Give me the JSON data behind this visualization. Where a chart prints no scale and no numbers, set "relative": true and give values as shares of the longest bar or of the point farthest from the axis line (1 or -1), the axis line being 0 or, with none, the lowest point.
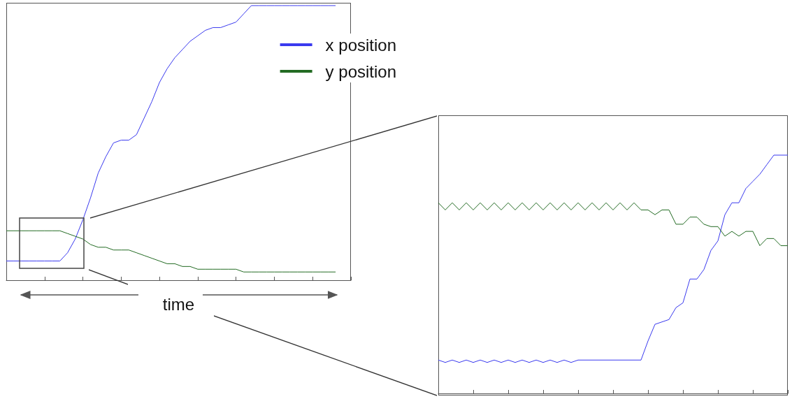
{
  "chart_data": [
    {
      "type": "line",
      "relative": true,
      "xlabel": "time",
      "legend": "top right",
      "marker": "none",
      "categories": [
        null,
        null,
        null,
        null,
        null,
        null,
        null,
        null,
        null,
        null,
        null,
        null,
        null,
        null,
        null,
        null,
        null,
        null,
        null,
        null,
        null,
        null,
        null,
        null,
        null,
        null,
        null,
        null,
        null,
        null,
        null,
        null,
        null,
        null,
        null,
        null,
        null,
        null,
        null,
        null,
        null,
        null,
        null,
        null,
        null,
        null
      ],
      "series": [
        {
          "name": "x position",
          "color": "#3a3aef",
          "values": [
            0.07,
            0.07,
            0.07,
            0.07,
            0.07,
            0.07,
            0.07,
            0.07,
            0.1,
            0.15,
            0.22,
            0.3,
            0.39,
            0.45,
            0.5,
            0.51,
            0.51,
            0.53,
            0.59,
            0.65,
            0.72,
            0.77,
            0.81,
            0.84,
            0.87,
            0.89,
            0.91,
            0.92,
            0.92,
            0.93,
            0.94,
            0.97,
            1,
            1,
            1,
            1,
            1,
            1,
            1,
            1,
            1,
            1,
            1,
            1,
            null,
            null
          ]
        },
        {
          "name": "y position",
          "color": "#236b23",
          "values": [
            0.18,
            0.18,
            0.18,
            0.18,
            0.18,
            0.18,
            0.18,
            0.18,
            0.17,
            0.16,
            0.15,
            0.13,
            0.12,
            0.12,
            0.11,
            0.11,
            0.11,
            0.1,
            0.09,
            0.08,
            0.07,
            0.06,
            0.06,
            0.05,
            0.05,
            0.04,
            0.04,
            0.04,
            0.04,
            0.04,
            0.04,
            0.03,
            0.03,
            0.03,
            0.03,
            0.03,
            0.03,
            0.03,
            0.03,
            0.03,
            0.03,
            0.03,
            0.03,
            0.03,
            null,
            null
          ]
        }
      ]
    },
    {
      "type": "line",
      "relative": true,
      "marker": "none",
      "categories": [
        null,
        null,
        null,
        null,
        null,
        null,
        null,
        null,
        null,
        null,
        null,
        null,
        null,
        null,
        null,
        null,
        null,
        null,
        null,
        null,
        null,
        null,
        null,
        null,
        null,
        null,
        null,
        null,
        null,
        null,
        null,
        null,
        null,
        null,
        null,
        null,
        null,
        null,
        null,
        null,
        null,
        null,
        null,
        null,
        null,
        null,
        null,
        null,
        null,
        null,
        null
      ],
      "series": [
        {
          "color": "#3a3aef",
          "values": [
            0.14,
            0.13,
            0.14,
            0.13,
            0.14,
            0.13,
            0.14,
            0.13,
            0.14,
            0.13,
            0.14,
            0.13,
            0.14,
            0.13,
            0.14,
            0.13,
            0.14,
            0.13,
            0.14,
            0.13,
            0.14,
            0.14,
            0.14,
            0.14,
            0.14,
            0.14,
            0.14,
            0.14,
            0.14,
            0.14,
            0.22,
            0.29,
            0.3,
            0.31,
            0.36,
            0.38,
            0.48,
            0.48,
            0.52,
            0.6,
            0.64,
            0.75,
            0.8,
            0.8,
            0.86,
            0.89,
            0.92,
            0.96,
            1,
            1,
            1
          ]
        },
        {
          "color": "#236b23",
          "values": [
            0.8,
            0.77,
            0.8,
            0.77,
            0.8,
            0.77,
            0.8,
            0.77,
            0.8,
            0.77,
            0.8,
            0.77,
            0.8,
            0.77,
            0.8,
            0.77,
            0.8,
            0.77,
            0.8,
            0.77,
            0.8,
            0.77,
            0.8,
            0.77,
            0.8,
            0.77,
            0.8,
            0.77,
            0.8,
            0.77,
            0.77,
            0.75,
            0.77,
            0.77,
            0.71,
            0.71,
            0.74,
            0.74,
            0.71,
            0.7,
            0.7,
            0.66,
            0.68,
            0.66,
            0.68,
            0.68,
            0.62,
            0.65,
            0.65,
            0.62,
            0.62
          ]
        }
      ]
    }
  ]
}
